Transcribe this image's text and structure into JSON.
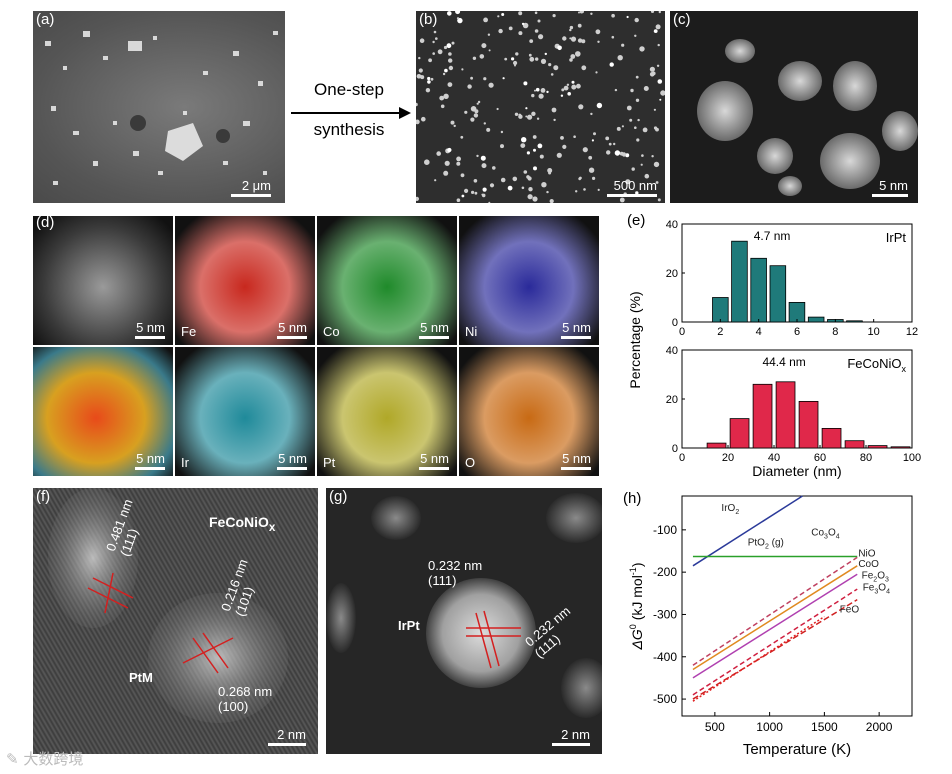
{
  "figure": {
    "panel_labels": [
      "(a)",
      "(b)",
      "(c)",
      "(d)",
      "(e)",
      "(f)",
      "(g)",
      "(h)"
    ],
    "arrow_text_line1": "One-step",
    "arrow_text_line2": "synthesis",
    "scale_a": "2 μm",
    "scale_b": "500 nm",
    "scale_c": "5 nm",
    "scale_d": "5 nm",
    "scale_f": "2 nm",
    "scale_g": "2 nm",
    "eds_elements": [
      "",
      "Fe",
      "Co",
      "Ni",
      "",
      "Ir",
      "Pt",
      "O"
    ],
    "eds_colors": [
      "#888888",
      "#c8281e",
      "#1f8a2a",
      "#2a2a9a",
      "#d8a020",
      "#1f8a9a",
      "#b0a828",
      "#c86a14"
    ],
    "f_annotations": {
      "oxide": "FeCoNiO",
      "oxide_sub": "x",
      "d1": "0.481 nm",
      "d1_hkl": "(111)",
      "d2": "0.216 nm",
      "d2_hkl": "(101)",
      "d3": "0.268 nm",
      "d3_hkl": "(100)",
      "alloy": "PtM"
    },
    "g_annotations": {
      "d1": "0.232 nm",
      "d1_hkl": "(111)",
      "d2": "0.232 nm",
      "d2_hkl": "(111)",
      "alloy": "IrPt"
    },
    "watermark": "大数跨境"
  },
  "chart_data": [
    {
      "type": "bar",
      "panel": "(e) top",
      "series_name": "IrPt",
      "annotation": "4.7 nm",
      "x": [
        2,
        3,
        4,
        5,
        6,
        7,
        8,
        9,
        10,
        11
      ],
      "values": [
        10,
        33,
        26,
        23,
        8,
        2,
        1,
        0.5,
        0,
        0
      ],
      "xlim": [
        0,
        12
      ],
      "xticks": [
        0,
        2,
        4,
        6,
        8,
        10,
        12
      ],
      "ylim": [
        0,
        40
      ],
      "yticks": [
        0,
        20,
        40
      ],
      "color": "#1f7a7a"
    },
    {
      "type": "bar",
      "panel": "(e) bottom",
      "series_name": "FeCoNiO",
      "series_sub": "x",
      "annotation": "44.4 nm",
      "x": [
        15,
        25,
        35,
        45,
        55,
        65,
        75,
        85,
        95
      ],
      "values": [
        2,
        12,
        26,
        27,
        19,
        8,
        3,
        1,
        0.5
      ],
      "xlim": [
        0,
        100
      ],
      "xticks": [
        0,
        20,
        40,
        60,
        80,
        100
      ],
      "ylim": [
        0,
        40
      ],
      "yticks": [
        0,
        20,
        40
      ],
      "color": "#e0284a",
      "xlabel": "Diameter (nm)",
      "ylabel": "Percentage (%)"
    },
    {
      "type": "line",
      "panel": "(h)",
      "xlabel": "Temperature (K)",
      "ylabel": "ΔG",
      "ylabel_sup": "0",
      "ylabel_unit": " (kJ mol",
      "ylabel_unit_sup": "-1",
      "ylabel_end": ")",
      "xlim": [
        200,
        2300
      ],
      "xticks": [
        500,
        1000,
        1500,
        2000
      ],
      "ylim": [
        -540,
        -20
      ],
      "yticks": [
        -100,
        -200,
        -300,
        -400,
        -500
      ],
      "series": [
        {
          "name": "IrO2",
          "label": "IrO",
          "sub": "2",
          "x": [
            300,
            1300
          ],
          "y": [
            -185,
            -20
          ],
          "color": "#2b3a9a",
          "dash": ""
        },
        {
          "name": "PtO2 (g)",
          "label": "PtO",
          "sub": "2",
          "suffix": " (g)",
          "x": [
            300,
            1800
          ],
          "y": [
            -163,
            -163
          ],
          "color": "#2aa02a",
          "dash": ""
        },
        {
          "name": "Co3O4",
          "label": "Co",
          "sub": "3",
          "label2": "O",
          "sub2": "4",
          "x": [
            300,
            1800
          ],
          "y": [
            -420,
            -165
          ],
          "color": "#c04060",
          "dash": "5,3"
        },
        {
          "name": "NiO",
          "label": "NiO",
          "x": [
            300,
            1800
          ],
          "y": [
            -430,
            -185
          ],
          "color": "#e08a20",
          "dash": ""
        },
        {
          "name": "CoO",
          "label": "CoO",
          "x": [
            300,
            1800
          ],
          "y": [
            -450,
            -205
          ],
          "color": "#b040b0",
          "dash": ""
        },
        {
          "name": "Fe2O3",
          "label": "Fe",
          "sub": "2",
          "label2": "O",
          "sub2": "3",
          "x": [
            300,
            1800
          ],
          "y": [
            -490,
            -240
          ],
          "color": "#d02040",
          "dash": "5,3"
        },
        {
          "name": "Fe3O4",
          "label": "Fe",
          "sub": "3",
          "label2": "O",
          "sub2": "4",
          "x": [
            300,
            1800
          ],
          "y": [
            -500,
            -265
          ],
          "color": "#d02020",
          "dash": "6,3"
        },
        {
          "name": "FeO",
          "label": "FeO",
          "x": [
            300,
            1500
          ],
          "y": [
            -505,
            -305
          ],
          "color": "#e02020",
          "dash": "2,2"
        }
      ]
    }
  ]
}
